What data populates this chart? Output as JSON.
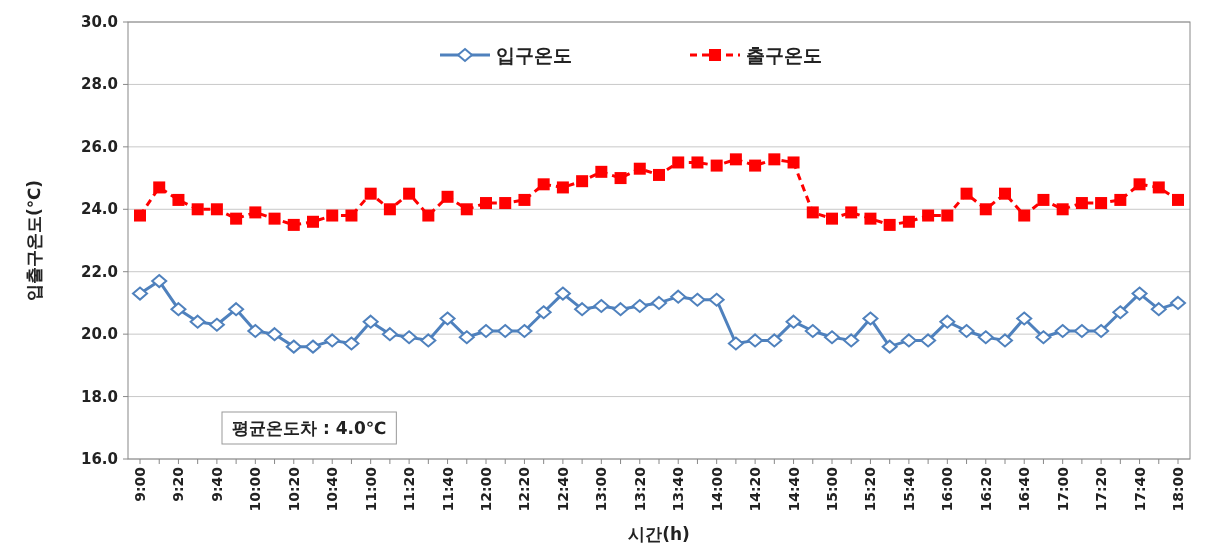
{
  "chart_data": {
    "type": "line",
    "xlabel": "시간(h)",
    "ylabel": "입출구온도(℃)",
    "categories": [
      "9:00",
      null,
      "9:20",
      null,
      "9:40",
      null,
      "10:00",
      null,
      "10:20",
      null,
      "10:40",
      null,
      "11:00",
      null,
      "11:20",
      null,
      "11:40",
      null,
      "12:00",
      null,
      "12:20",
      null,
      "12:40",
      null,
      "13:00",
      null,
      "13:20",
      null,
      "13:40",
      null,
      "14:00",
      null,
      "14:20",
      null,
      "14:40",
      null,
      "15:00",
      null,
      "15:20",
      null,
      "15:40",
      null,
      "16:00",
      null,
      "16:20",
      null,
      "16:40",
      null,
      "17:00",
      null,
      "17:20",
      null,
      "17:40",
      null,
      "18:00"
    ],
    "series": [
      {
        "name": "입구온도",
        "color": "#4f81bd",
        "marker": "diamond",
        "line_style": "solid",
        "values": [
          21.3,
          21.7,
          20.8,
          20.4,
          20.3,
          20.8,
          20.1,
          20.0,
          19.6,
          19.6,
          19.8,
          19.7,
          20.4,
          20.0,
          19.9,
          19.8,
          20.5,
          19.9,
          20.1,
          20.1,
          20.1,
          20.7,
          21.3,
          20.8,
          20.9,
          20.8,
          20.9,
          21.0,
          21.2,
          21.1,
          21.1,
          19.7,
          19.8,
          19.8,
          20.4,
          20.1,
          19.9,
          19.8,
          20.5,
          19.6,
          19.8,
          19.8,
          20.4,
          20.1,
          19.9,
          19.8,
          20.5,
          19.9,
          20.1,
          20.1,
          20.1,
          20.7,
          21.3,
          20.8,
          21.0
        ]
      },
      {
        "name": "출구온도",
        "color": "#ff0000",
        "marker": "square",
        "line_style": "dashed",
        "values": [
          23.8,
          24.7,
          24.3,
          24.0,
          24.0,
          23.7,
          23.9,
          23.7,
          23.5,
          23.6,
          23.8,
          23.8,
          24.5,
          24.0,
          24.5,
          23.8,
          24.4,
          24.0,
          24.2,
          24.2,
          24.3,
          24.8,
          24.7,
          24.9,
          25.2,
          25.0,
          25.3,
          25.1,
          25.5,
          25.5,
          25.4,
          25.6,
          25.4,
          25.6,
          25.5,
          23.9,
          23.7,
          23.9,
          23.7,
          23.5,
          23.6,
          23.8,
          23.8,
          24.5,
          24.0,
          24.5,
          23.8,
          24.3,
          24.0,
          24.2,
          24.2,
          24.3,
          24.8,
          24.7,
          24.3
        ]
      }
    ],
    "ylim": [
      16,
      30
    ],
    "yticks": [
      {
        "value": 16,
        "label": "16.0"
      },
      {
        "value": 18,
        "label": "18.0"
      },
      {
        "value": 20,
        "label": "20.0"
      },
      {
        "value": 22,
        "label": "22.0"
      },
      {
        "value": 24,
        "label": "24.0"
      },
      {
        "value": 26,
        "label": "26.0"
      },
      {
        "value": 28,
        "label": "28.0"
      },
      {
        "value": 30,
        "label": "30.0"
      }
    ],
    "grid": "y",
    "legend": "top",
    "annotations": [
      "평균온도차 : 4.0℃"
    ]
  }
}
